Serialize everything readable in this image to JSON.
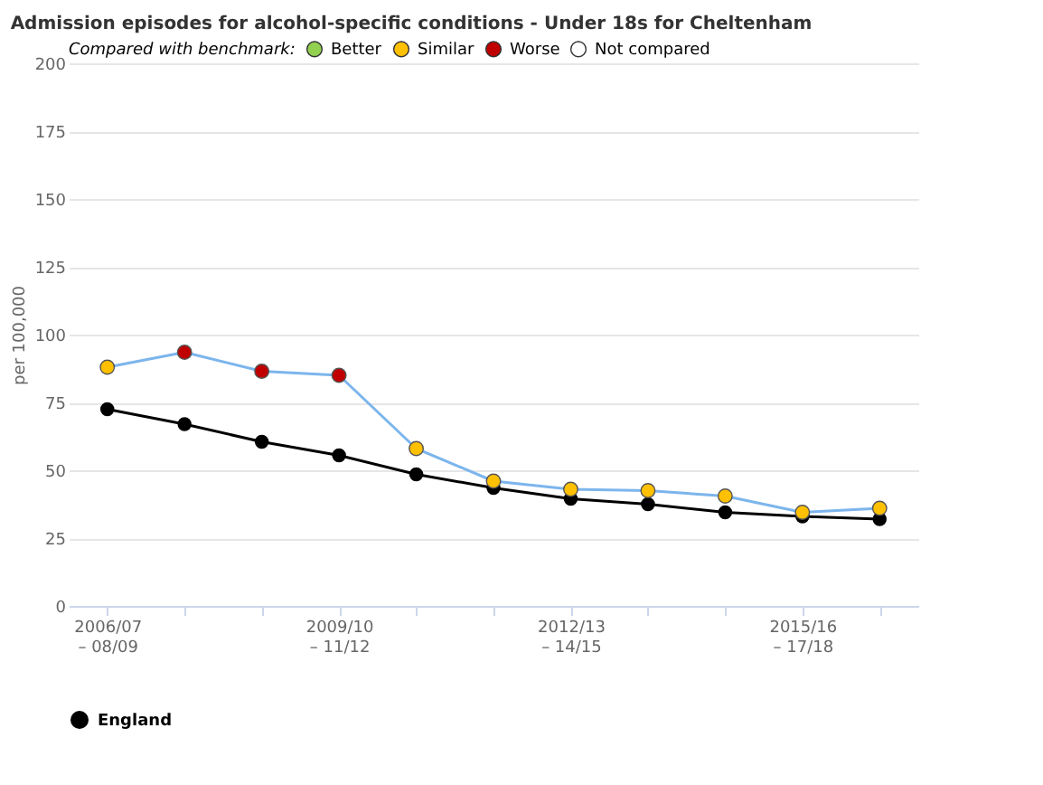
{
  "chart_data": {
    "type": "line",
    "title": "Admission episodes for alcohol-specific conditions - Under 18s for Cheltenham",
    "ylabel": "per 100,000",
    "legend_title": "Compared with benchmark:",
    "categories": [
      "2006/07 – 08/09",
      null,
      null,
      "2009/10 – 11/12",
      null,
      null,
      "2012/13 – 14/15",
      null,
      null,
      "2015/16 – 17/18",
      null
    ],
    "series": [
      {
        "color": "#7cb5ec",
        "marker": "circle",
        "colors": [
          "#ffc000",
          "#c00000",
          "#c00000",
          "#c00000",
          "#ffc000",
          "#ffc000",
          "#ffc000",
          "#ffc000",
          "#ffc000",
          "#ffc000",
          "#ffc000"
        ],
        "values": [
          88,
          93.5,
          86.5,
          85,
          58,
          46,
          43,
          42.5,
          40.5,
          34.5,
          36
        ]
      },
      {
        "name": "England",
        "color": "#000000",
        "marker": "circle",
        "values": [
          72.5,
          67,
          60.5,
          55.5,
          48.5,
          43.5,
          39.5,
          37.5,
          34.5,
          33,
          32
        ]
      },
      {
        "name": "Better",
        "type": "scatter",
        "color": "#92d050",
        "values": [
          null,
          null,
          null,
          null,
          null,
          null,
          null,
          null,
          null,
          null,
          null
        ]
      },
      {
        "name": "Similar",
        "type": "scatter",
        "color": "#ffc000",
        "values": [
          null,
          null,
          null,
          null,
          null,
          null,
          null,
          null,
          null,
          null,
          null
        ]
      },
      {
        "name": "Worse",
        "type": "scatter",
        "color": "#c00000",
        "values": [
          null,
          null,
          null,
          null,
          null,
          null,
          null,
          null,
          null,
          null,
          null
        ]
      },
      {
        "name": "Not compared",
        "type": "scatter",
        "color": "#ffffff",
        "values": [
          null,
          null,
          null,
          null,
          null,
          null,
          null,
          null,
          null,
          null,
          null
        ]
      }
    ],
    "ylim": [
      0,
      200
    ],
    "yticks": [
      0,
      25,
      50,
      75,
      100,
      125,
      150,
      175,
      200
    ],
    "grid": "y",
    "legend": "bottom"
  }
}
